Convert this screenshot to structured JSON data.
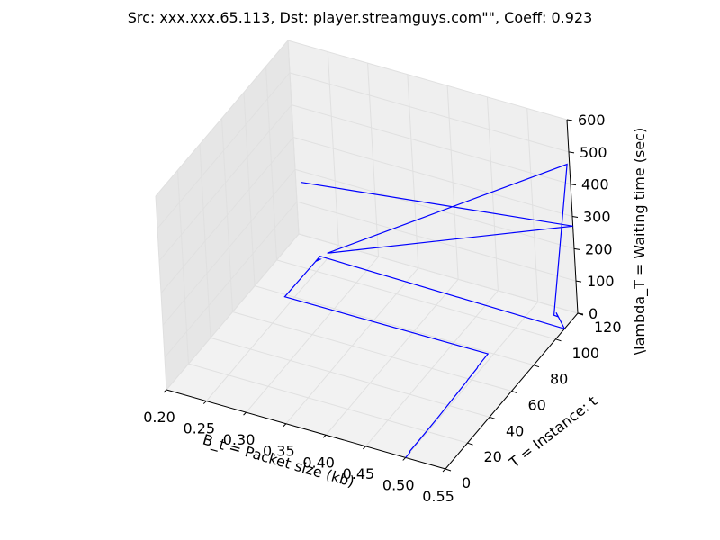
{
  "chart_data": {
    "type": "line",
    "projection": "3d",
    "title": "Src: xxx.xxx.65.113, Dst: player.streamguys.com\"\", Coeff: 0.923",
    "xlabel": "B_t = Packet size (kb)",
    "ylabel": "T = Instance: t",
    "zlabel": "\\lambda_T = Waiting time (sec)",
    "xlim": [
      0.2,
      0.55
    ],
    "ylim": [
      0,
      120
    ],
    "zlim": [
      0,
      600
    ],
    "xticks": [
      "0.20",
      "0.25",
      "0.30",
      "0.35",
      "0.40",
      "0.45",
      "0.50",
      "0.55"
    ],
    "yticks": [
      "0",
      "20",
      "40",
      "60",
      "80",
      "100",
      "120"
    ],
    "zticks": [
      "0",
      "100",
      "200",
      "300",
      "400",
      "500",
      "600"
    ],
    "grid": true,
    "line_color": "#0000ff",
    "pane_color": "#f2f2f2",
    "grid_color": "#e0e0e0",
    "series": [
      {
        "points": [
          [
            0.5,
            0,
            0
          ],
          [
            0.5,
            4,
            0
          ],
          [
            0.5,
            4,
            4
          ],
          [
            0.5,
            12,
            4
          ],
          [
            0.5,
            30,
            6
          ],
          [
            0.5,
            45,
            10
          ],
          [
            0.5,
            55,
            12
          ],
          [
            0.5,
            57,
            14
          ],
          [
            0.5,
            65,
            15
          ],
          [
            0.5,
            66,
            18
          ],
          [
            0.5,
            75,
            20
          ],
          [
            0.245,
            75,
            18
          ],
          [
            0.245,
            105,
            15
          ],
          [
            0.248,
            105,
            16
          ],
          [
            0.245,
            103,
            15
          ],
          [
            0.245,
            107,
            15
          ],
          [
            0.55,
            108,
            0
          ],
          [
            0.53,
            115,
            8
          ],
          [
            0.535,
            113,
            7
          ],
          [
            0.53,
            113,
            8
          ],
          [
            0.55,
            118,
            470
          ],
          [
            0.25,
            110,
            16
          ],
          [
            0.55,
            120,
            270
          ],
          [
            0.21,
            118,
            175
          ]
        ]
      }
    ]
  }
}
